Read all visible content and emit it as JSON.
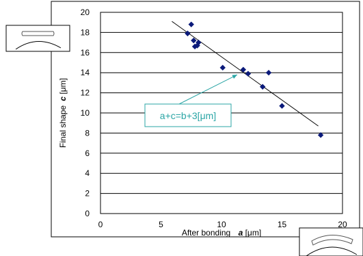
{
  "chart_data": {
    "type": "scatter",
    "title": "",
    "xlabel_prefix": "After bonding",
    "xlabel_var": "a",
    "xlabel_unit": "[μm]",
    "ylabel_prefix": "Final shape",
    "ylabel_var": "c",
    "ylabel_unit": "[μm]",
    "xlim": [
      0,
      20
    ],
    "ylim": [
      0,
      20
    ],
    "xticks": [
      0,
      5,
      10,
      15,
      20
    ],
    "yticks": [
      0,
      2,
      4,
      6,
      8,
      10,
      12,
      14,
      16,
      18,
      20
    ],
    "grid": "horizontal",
    "series": [
      {
        "marker": "diamond",
        "color": "#0b1a7a",
        "points": [
          {
            "x": 7.2,
            "y": 17.9
          },
          {
            "x": 7.5,
            "y": 18.8
          },
          {
            "x": 7.7,
            "y": 17.2
          },
          {
            "x": 7.8,
            "y": 16.6
          },
          {
            "x": 8.0,
            "y": 16.7
          },
          {
            "x": 8.1,
            "y": 17.0
          },
          {
            "x": 10.1,
            "y": 14.5
          },
          {
            "x": 11.8,
            "y": 14.3
          },
          {
            "x": 12.2,
            "y": 13.9
          },
          {
            "x": 13.4,
            "y": 12.6
          },
          {
            "x": 13.9,
            "y": 14.0
          },
          {
            "x": 15.0,
            "y": 10.7
          },
          {
            "x": 18.2,
            "y": 7.8
          }
        ]
      }
    ],
    "trend_line": {
      "x": [
        5.9,
        18.0
      ],
      "y": [
        19.1,
        8.7
      ],
      "color": "#000000"
    },
    "annotation": {
      "text": "a+c=b+3[μm]",
      "color": "#2aa5a5",
      "arrow_to": {
        "x": 11.3,
        "y": 13.8
      }
    }
  }
}
